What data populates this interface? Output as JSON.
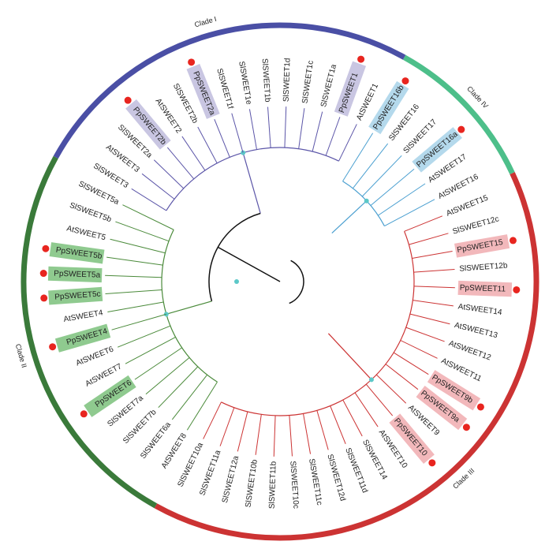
{
  "clades": [
    {
      "label": "Clade IV",
      "color": "#4dbf8a",
      "branch_color": "#4a9fd0",
      "highlight": "#b4d9ec",
      "leaves": [
        "PpSWEET16b",
        "SlSWEET16",
        "SlSWEET17",
        "PpSWEET16a",
        "AtSWEET17",
        "AtSWEET16"
      ]
    },
    {
      "label": "Clade III",
      "color": "#cc3333",
      "branch_color": "#cc3333",
      "highlight": "#f2b8bb",
      "leaves": [
        "AtSWEET15",
        "SlSWEET12c",
        "PpSWEET15",
        "SlSWEET12b",
        "PpSWEET11",
        "AtSWEET14",
        "AtSWEET13",
        "AtSWEET12",
        "AtSWEET11",
        "PpSWEET9b",
        "PpSWEET9a",
        "AtSWEET9",
        "PpSWEET10",
        "AtSWEET10",
        "SlSWEET14",
        "SlSWEET11d",
        "SlSWEET12d",
        "SlSWEET11c",
        "SlSWEET10c",
        "SlSWEET11b",
        "SlSWEET10b",
        "SlSWEET12a",
        "SlSWEET11a",
        "SlSWEET10a"
      ]
    },
    {
      "label": "Clade II",
      "color": "#3a7a3a",
      "branch_color": "#4a8a3a",
      "highlight": "#8fca8f",
      "leaves": [
        "AtSWEET8",
        "SlSWEET6a",
        "SlSWEET7b",
        "SlSWEET7a",
        "PpSWEET6",
        "AtSWEET7",
        "AtSWEET6",
        "PpSWEET4",
        "AtSWEET4",
        "PpSWEET5c",
        "PpSWEET5a",
        "PpSWEET5b",
        "AtSWEET5",
        "SlSWEET5b",
        "SlSWEET5a"
      ]
    },
    {
      "label": "Clade I",
      "color": "#4a4fa5",
      "branch_color": "#5b55a8",
      "highlight": "#c9c6e2",
      "leaves": [
        "SlSWEET3",
        "AtSWEET3",
        "SlSWEET2a",
        "PpSWEET2b",
        "AtSWEET2",
        "SlSWEET2b",
        "PpSWEET2a",
        "SlSWEET1f",
        "SlSWEET1e",
        "SlSWEET1b",
        "SlSWEET1d",
        "SlSWEET1c",
        "SlSWEET1a",
        "PpSWEET1",
        "AtSWEET1"
      ]
    }
  ]
}
